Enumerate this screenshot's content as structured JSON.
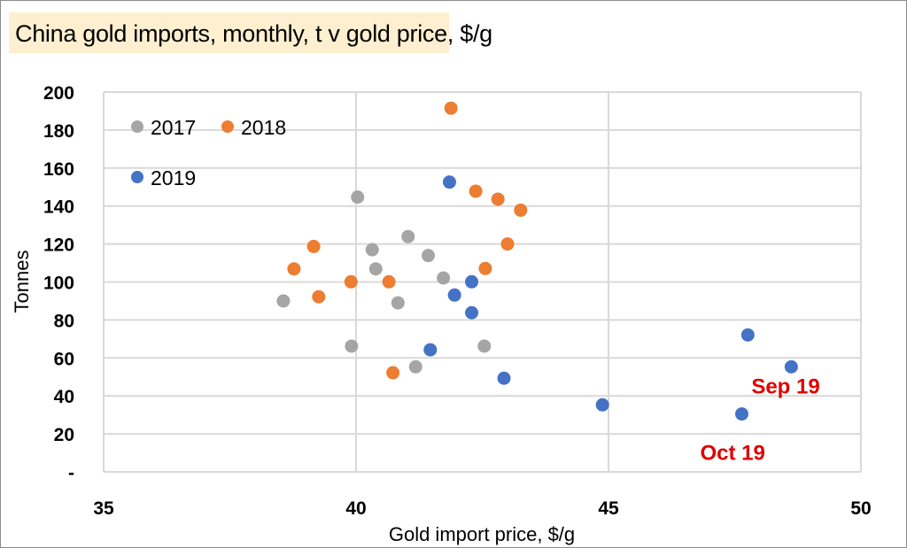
{
  "chart_data": {
    "type": "scatter",
    "title": "China gold imports, monthly, t v gold price, $/g",
    "xlabel": "Gold import price, $/g",
    "ylabel": "Tonnes",
    "xlim": [
      35,
      50
    ],
    "ylim": [
      0,
      200
    ],
    "x_ticks": [
      35,
      40,
      45,
      50
    ],
    "x_tick_labels": [
      "35",
      "40",
      "45",
      "50"
    ],
    "y_ticks": [
      0,
      20,
      40,
      60,
      80,
      100,
      120,
      140,
      160,
      180,
      200
    ],
    "y_tick_labels": [
      "-",
      "20",
      "40",
      "60",
      "80",
      "100",
      "120",
      "140",
      "160",
      "180",
      "200"
    ],
    "grid": true,
    "legend_position": "top-left",
    "series": [
      {
        "name": "2017",
        "color": "#a5a5a5",
        "x": [
          40.03,
          41.03,
          40.32,
          41.43,
          40.39,
          41.73,
          38.56,
          40.83,
          39.91,
          41.18,
          42.54
        ],
        "y": [
          144.7,
          123.9,
          117.0,
          113.9,
          106.9,
          102.1,
          90.0,
          89.0,
          66.2,
          55.3,
          66.2
        ]
      },
      {
        "name": "2018",
        "color": "#ed7d31",
        "x": [
          41.88,
          42.37,
          42.81,
          43.26,
          43.0,
          39.16,
          42.56,
          38.77,
          39.9,
          40.65,
          39.26,
          40.73
        ],
        "y": [
          191.5,
          147.8,
          143.6,
          137.8,
          120.0,
          118.7,
          107.1,
          106.9,
          100.1,
          100.1,
          92.2,
          52.2
        ]
      },
      {
        "name": "2019",
        "color": "#4472c4",
        "x": [
          41.85,
          42.29,
          41.95,
          42.29,
          41.47,
          42.93,
          44.88,
          47.76,
          48.62,
          47.64
        ],
        "y": [
          152.6,
          100.1,
          93.1,
          83.8,
          64.3,
          49.3,
          35.3,
          72.1,
          55.3,
          30.5
        ]
      }
    ],
    "annotations": [
      {
        "text": "Sep 19",
        "x": 48.62,
        "y": 55.3
      },
      {
        "text": "Oct 19",
        "x": 47.64,
        "y": 30.5
      }
    ]
  },
  "colors": {
    "title_background": "#fdefcf",
    "gridline": "#d9d9d9",
    "annotation": "#e00000"
  }
}
